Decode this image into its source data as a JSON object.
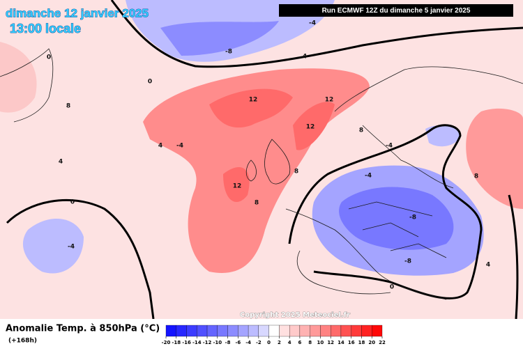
{
  "header": {
    "date": "dimanche 12 janvier 2025",
    "time": "13:00 locale",
    "run": "Run ECMWF 12Z du dimanche 5 janvier 2025"
  },
  "copyright": "Copyright 2025 Meteociel.fr",
  "contour_labels": [
    12,
    12,
    12,
    12,
    8,
    8,
    8,
    8,
    8,
    4,
    4,
    4,
    4,
    -4,
    -4,
    -4,
    -4,
    -8,
    -8,
    -8,
    0,
    0,
    0,
    0,
    -4
  ],
  "legend": {
    "title": "Anomalie Temp. à 850hPa (°C)",
    "subtitle": "(+168h)",
    "ticks": [
      -20,
      -18,
      -16,
      -14,
      -12,
      -10,
      -8,
      -6,
      -4,
      -2,
      0,
      2,
      4,
      6,
      8,
      10,
      12,
      14,
      16,
      18,
      20,
      22
    ],
    "colors": [
      "#1414ff",
      "#2828ff",
      "#3c3cff",
      "#5050ff",
      "#6464ff",
      "#7878ff",
      "#8c8cff",
      "#a4a4ff",
      "#bcbcff",
      "#d8d8ff",
      "#ffffff",
      "#ffe0e0",
      "#ffcaca",
      "#ffb2b2",
      "#ff9a9a",
      "#ff8282",
      "#ff6a6a",
      "#ff5252",
      "#ff3a3a",
      "#ff2222",
      "#ff0808"
    ]
  }
}
